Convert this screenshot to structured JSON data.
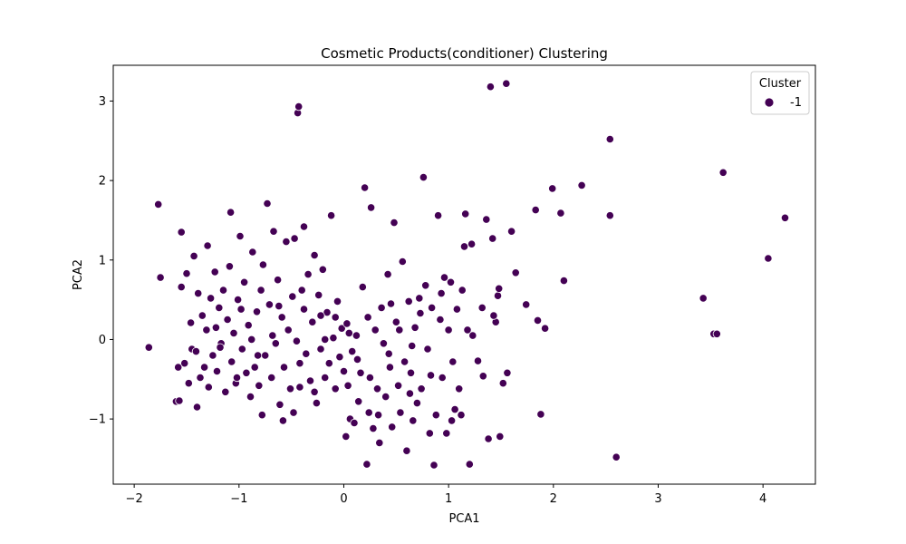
{
  "chart_data": {
    "type": "scatter",
    "title": "Cosmetic Products(conditioner) Clustering",
    "xlabel": "PCA1",
    "ylabel": "PCA2",
    "xlim": [
      -2.2,
      4.5
    ],
    "ylim": [
      -1.82,
      3.45
    ],
    "xticks": [
      -2,
      -1,
      0,
      1,
      2,
      3,
      4
    ],
    "yticks": [
      -1,
      0,
      1,
      2,
      3
    ],
    "grid": false,
    "legend": {
      "title": "Cluster",
      "placement": "top-right",
      "entries": [
        "-1"
      ]
    },
    "series": [
      {
        "name": "-1",
        "color": "#440154",
        "points": [
          [
            -1.86,
            -0.1
          ],
          [
            -1.77,
            1.7
          ],
          [
            -1.75,
            0.78
          ],
          [
            -1.6,
            -0.78
          ],
          [
            -1.57,
            -0.77
          ],
          [
            -1.55,
            1.35
          ],
          [
            -1.55,
            0.66
          ],
          [
            -1.52,
            -0.3
          ],
          [
            -1.5,
            0.83
          ],
          [
            -1.48,
            -0.55
          ],
          [
            -1.46,
            0.21
          ],
          [
            -1.45,
            -0.12
          ],
          [
            -1.43,
            1.05
          ],
          [
            -1.41,
            -0.15
          ],
          [
            -1.39,
            0.58
          ],
          [
            -1.37,
            -0.48
          ],
          [
            -1.35,
            0.3
          ],
          [
            -1.33,
            -0.35
          ],
          [
            -1.31,
            0.12
          ],
          [
            -1.29,
            -0.6
          ],
          [
            -1.27,
            0.52
          ],
          [
            -1.25,
            -0.2
          ],
          [
            -1.23,
            0.85
          ],
          [
            -1.21,
            -0.4
          ],
          [
            -1.19,
            0.4
          ],
          [
            -1.17,
            -0.05
          ],
          [
            -1.15,
            0.62
          ],
          [
            -1.13,
            -0.66
          ],
          [
            -1.11,
            0.25
          ],
          [
            -1.09,
            0.92
          ],
          [
            -1.07,
            -0.28
          ],
          [
            -1.05,
            0.08
          ],
          [
            -1.03,
            -0.55
          ],
          [
            -1.01,
            0.5
          ],
          [
            -0.99,
            1.3
          ],
          [
            -0.97,
            -0.12
          ],
          [
            -0.95,
            0.72
          ],
          [
            -0.93,
            -0.42
          ],
          [
            -0.91,
            0.18
          ],
          [
            -0.89,
            -0.72
          ],
          [
            -0.87,
            1.1
          ],
          [
            -0.85,
            -0.35
          ],
          [
            -0.83,
            0.35
          ],
          [
            -0.81,
            -0.58
          ],
          [
            -0.79,
            0.62
          ],
          [
            -0.77,
            0.94
          ],
          [
            -0.75,
            -0.2
          ],
          [
            -0.73,
            1.71
          ],
          [
            -0.71,
            0.44
          ],
          [
            -0.69,
            -0.48
          ],
          [
            -0.67,
            1.36
          ],
          [
            -0.65,
            -0.05
          ],
          [
            -0.63,
            0.75
          ],
          [
            -0.61,
            -0.82
          ],
          [
            -0.59,
            0.28
          ],
          [
            -0.57,
            -0.35
          ],
          [
            -0.55,
            1.23
          ],
          [
            -0.53,
            0.12
          ],
          [
            -0.51,
            -0.62
          ],
          [
            -0.49,
            0.54
          ],
          [
            -0.47,
            1.27
          ],
          [
            -0.45,
            -0.02
          ],
          [
            -0.44,
            2.85
          ],
          [
            -0.43,
            2.93
          ],
          [
            -0.42,
            -0.3
          ],
          [
            -0.4,
            0.62
          ],
          [
            -0.38,
            1.42
          ],
          [
            -0.36,
            -0.18
          ],
          [
            -0.34,
            0.82
          ],
          [
            -0.32,
            -0.52
          ],
          [
            -0.3,
            0.22
          ],
          [
            -0.28,
            1.06
          ],
          [
            -0.26,
            -0.8
          ],
          [
            -0.24,
            0.56
          ],
          [
            -0.22,
            -0.12
          ],
          [
            -0.2,
            0.88
          ],
          [
            -0.18,
            -0.48
          ],
          [
            -0.16,
            0.34
          ],
          [
            -0.14,
            -0.3
          ],
          [
            -0.12,
            1.56
          ],
          [
            -0.1,
            0.02
          ],
          [
            -0.08,
            -0.62
          ],
          [
            -0.06,
            0.48
          ],
          [
            -0.04,
            -0.22
          ],
          [
            -0.02,
            0.14
          ],
          [
            0.0,
            -0.4
          ],
          [
            0.02,
            -1.22
          ],
          [
            0.04,
            -0.58
          ],
          [
            0.06,
            -1.0
          ],
          [
            0.08,
            -0.15
          ],
          [
            0.1,
            -1.05
          ],
          [
            0.12,
            0.05
          ],
          [
            0.14,
            -0.78
          ],
          [
            0.16,
            -0.42
          ],
          [
            0.18,
            0.66
          ],
          [
            0.2,
            1.91
          ],
          [
            0.22,
            -1.57
          ],
          [
            0.24,
            -0.92
          ],
          [
            0.26,
            1.66
          ],
          [
            0.28,
            -1.12
          ],
          [
            0.3,
            0.12
          ],
          [
            0.32,
            -0.62
          ],
          [
            0.34,
            -1.3
          ],
          [
            0.36,
            0.4
          ],
          [
            0.38,
            -0.05
          ],
          [
            0.4,
            -0.72
          ],
          [
            0.42,
            0.82
          ],
          [
            0.44,
            -0.35
          ],
          [
            0.46,
            -1.1
          ],
          [
            0.48,
            1.47
          ],
          [
            0.5,
            0.22
          ],
          [
            0.52,
            -0.58
          ],
          [
            0.54,
            -0.92
          ],
          [
            0.56,
            0.98
          ],
          [
            0.58,
            -0.28
          ],
          [
            0.6,
            -1.4
          ],
          [
            0.62,
            0.48
          ],
          [
            0.64,
            -0.42
          ],
          [
            0.66,
            -1.02
          ],
          [
            0.68,
            0.15
          ],
          [
            0.7,
            -0.8
          ],
          [
            0.72,
            0.52
          ],
          [
            0.74,
            -0.62
          ],
          [
            0.76,
            2.04
          ],
          [
            0.78,
            0.68
          ],
          [
            0.8,
            -0.12
          ],
          [
            0.82,
            -1.18
          ],
          [
            0.84,
            0.4
          ],
          [
            0.86,
            -1.58
          ],
          [
            0.88,
            -0.95
          ],
          [
            0.9,
            1.56
          ],
          [
            0.92,
            0.25
          ],
          [
            0.94,
            -0.48
          ],
          [
            0.96,
            0.78
          ],
          [
            0.98,
            -1.18
          ],
          [
            1.0,
            0.12
          ],
          [
            1.02,
            0.72
          ],
          [
            1.04,
            -0.28
          ],
          [
            1.06,
            -0.88
          ],
          [
            1.08,
            0.38
          ],
          [
            1.1,
            -0.62
          ],
          [
            1.12,
            -0.95
          ],
          [
            1.15,
            1.17
          ],
          [
            1.16,
            1.58
          ],
          [
            1.18,
            0.12
          ],
          [
            1.2,
            -1.57
          ],
          [
            1.22,
            1.2
          ],
          [
            1.28,
            -0.27
          ],
          [
            1.32,
            0.4
          ],
          [
            1.36,
            1.51
          ],
          [
            1.38,
            -1.25
          ],
          [
            1.4,
            3.18
          ],
          [
            1.42,
            1.27
          ],
          [
            1.45,
            0.22
          ],
          [
            1.47,
            0.55
          ],
          [
            1.48,
            0.64
          ],
          [
            1.49,
            -1.22
          ],
          [
            1.52,
            -0.55
          ],
          [
            1.55,
            3.22
          ],
          [
            1.56,
            -0.42
          ],
          [
            1.6,
            1.36
          ],
          [
            1.64,
            0.84
          ],
          [
            1.74,
            0.44
          ],
          [
            1.83,
            1.63
          ],
          [
            1.85,
            0.24
          ],
          [
            1.88,
            -0.94
          ],
          [
            1.92,
            0.14
          ],
          [
            1.99,
            1.9
          ],
          [
            2.07,
            1.59
          ],
          [
            2.1,
            0.74
          ],
          [
            2.27,
            1.94
          ],
          [
            2.54,
            2.52
          ],
          [
            2.54,
            1.56
          ],
          [
            2.6,
            -1.48
          ],
          [
            3.43,
            0.52
          ],
          [
            3.53,
            0.07
          ],
          [
            3.56,
            0.07
          ],
          [
            3.62,
            2.1
          ],
          [
            4.05,
            1.02
          ],
          [
            4.21,
            1.53
          ],
          [
            -1.58,
            -0.35
          ],
          [
            -1.4,
            -0.85
          ],
          [
            -1.3,
            1.18
          ],
          [
            -1.18,
            -0.1
          ],
          [
            -1.08,
            1.6
          ],
          [
            -0.98,
            0.38
          ],
          [
            -0.88,
            0.0
          ],
          [
            -0.78,
            -0.95
          ],
          [
            -0.68,
            0.05
          ],
          [
            -0.58,
            -1.02
          ],
          [
            -0.48,
            -0.92
          ],
          [
            -0.38,
            0.38
          ],
          [
            -0.28,
            -0.66
          ],
          [
            -0.18,
            0.0
          ],
          [
            -0.08,
            0.28
          ],
          [
            0.03,
            0.2
          ],
          [
            0.13,
            -0.25
          ],
          [
            0.23,
            0.28
          ],
          [
            0.33,
            -0.95
          ],
          [
            0.43,
            -0.18
          ],
          [
            0.53,
            0.12
          ],
          [
            0.63,
            -0.68
          ],
          [
            0.73,
            0.33
          ],
          [
            0.83,
            -0.45
          ],
          [
            0.93,
            0.58
          ],
          [
            1.03,
            -1.02
          ],
          [
            1.13,
            0.62
          ],
          [
            1.23,
            0.05
          ],
          [
            1.33,
            -0.46
          ],
          [
            1.43,
            0.3
          ],
          [
            -1.22,
            0.15
          ],
          [
            -1.02,
            -0.48
          ],
          [
            -0.82,
            -0.2
          ],
          [
            -0.62,
            0.42
          ],
          [
            -0.42,
            -0.6
          ],
          [
            -0.22,
            0.3
          ],
          [
            0.05,
            0.08
          ],
          [
            0.25,
            -0.48
          ],
          [
            0.45,
            0.45
          ],
          [
            0.65,
            -0.08
          ]
        ]
      }
    ]
  }
}
